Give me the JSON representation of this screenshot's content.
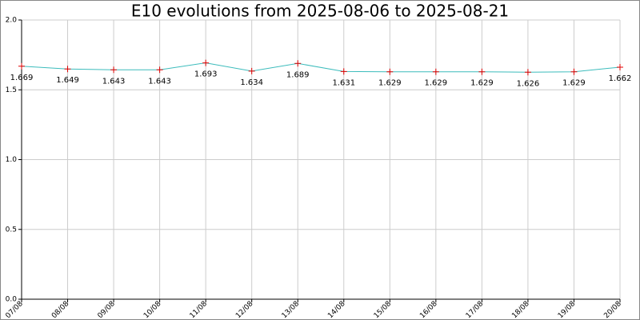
{
  "chart_data": {
    "type": "line",
    "title": "E10 evolutions from 2025-08-06 to 2025-08-21",
    "categories": [
      "07/08",
      "08/08",
      "09/08",
      "10/08",
      "11/08",
      "12/08",
      "13/08",
      "14/08",
      "15/08",
      "16/08",
      "17/08",
      "18/08",
      "19/08",
      "20/08"
    ],
    "series": [
      {
        "name": "E10",
        "color": "#3cbcbc",
        "marker_color": "#e00000",
        "values": [
          1.669,
          1.649,
          1.643,
          1.643,
          1.693,
          1.634,
          1.689,
          1.631,
          1.629,
          1.629,
          1.629,
          1.626,
          1.629,
          1.662
        ]
      }
    ],
    "ylim": [
      0,
      2
    ],
    "yticks": [
      {
        "value": 0,
        "label": "0.0"
      },
      {
        "value": 0.5,
        "label": "0.5"
      },
      {
        "value": 1,
        "label": "1.0"
      },
      {
        "value": 1.5,
        "label": "1.5"
      },
      {
        "value": 2,
        "label": "2.0"
      }
    ],
    "grid": true
  }
}
